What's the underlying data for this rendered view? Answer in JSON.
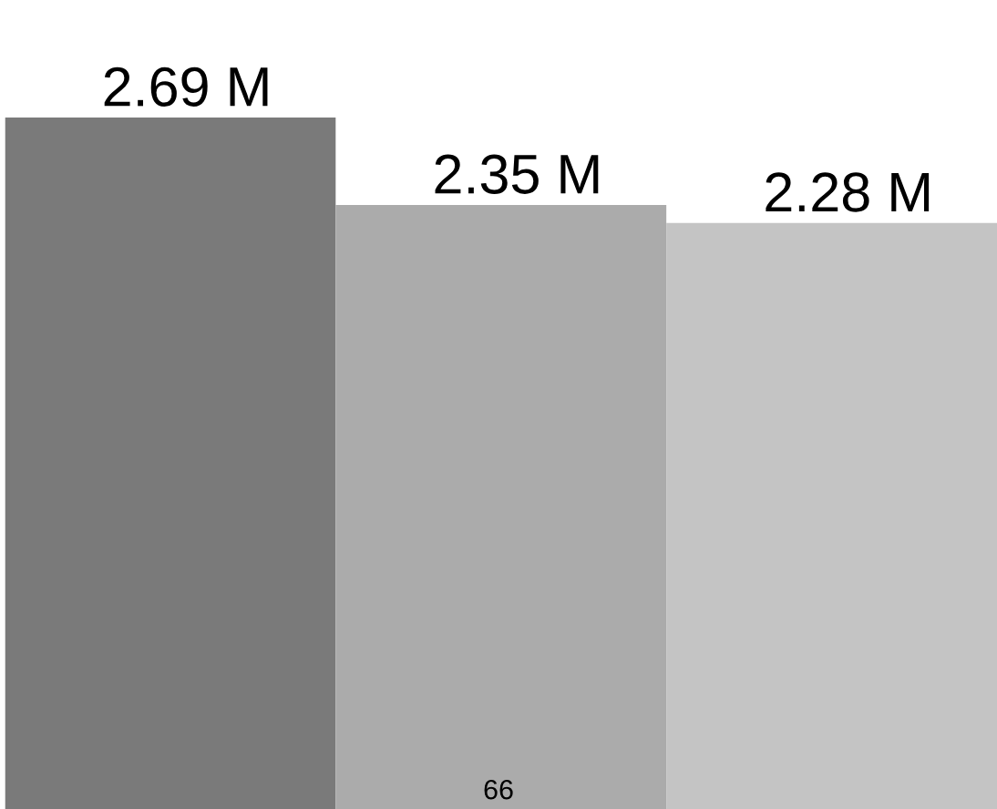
{
  "chart_data": {
    "type": "bar",
    "categories": [
      null,
      null,
      null
    ],
    "values": [
      2.69,
      2.35,
      2.28
    ],
    "colors": [
      "#7a7a7a",
      "#ababab",
      "#c4c4c4"
    ],
    "value_labels": [
      "2.69 M",
      "2.35 M",
      "2.28 M"
    ],
    "annotations": [
      "66"
    ],
    "grid": false,
    "legend": false
  }
}
